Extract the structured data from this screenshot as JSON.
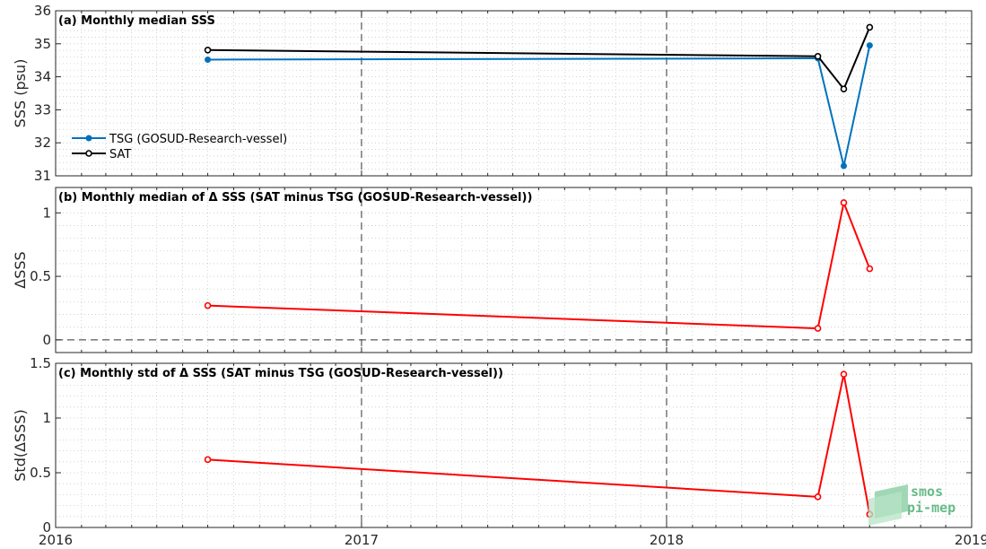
{
  "chart_data": [
    {
      "type": "line",
      "title": "(a) Monthly median SSS",
      "ylabel": "SSS (psu)",
      "ylim": [
        31,
        36
      ],
      "yticks": [
        31,
        32,
        33,
        34,
        35,
        36
      ],
      "xlim": [
        "2016-01-01",
        "2019-01-01"
      ],
      "grid": true,
      "legend": "bottom-left",
      "series": [
        {
          "name": "TSG (GOSUD-Research-vessel)",
          "color": "#0072BD",
          "marker": "filled-circle",
          "x": [
            "2016-07",
            "2018-07",
            "2018-08",
            "2018-09"
          ],
          "values": [
            34.52,
            34.56,
            31.3,
            34.95
          ]
        },
        {
          "name": "SAT",
          "color": "#000000",
          "marker": "open-circle",
          "x": [
            "2016-07",
            "2018-07",
            "2018-08",
            "2018-09"
          ],
          "values": [
            34.81,
            34.62,
            33.63,
            35.5
          ]
        }
      ]
    },
    {
      "type": "line",
      "title": "(b) Monthly median of Δ SSS (SAT minus TSG (GOSUD-Research-vessel))",
      "ylabel": "ΔSSS",
      "ylim": [
        -0.1,
        1.2
      ],
      "yticks": [
        0,
        0.5,
        1
      ],
      "xlim": [
        "2016-01-01",
        "2019-01-01"
      ],
      "grid": true,
      "zero_line": true,
      "series": [
        {
          "color": "#FF0000",
          "marker": "open-circle",
          "x": [
            "2016-07",
            "2018-07",
            "2018-08",
            "2018-09"
          ],
          "values": [
            0.27,
            0.09,
            1.08,
            0.56
          ]
        }
      ]
    },
    {
      "type": "line",
      "title": "(c) Monthly std of Δ SSS (SAT minus TSG (GOSUD-Research-vessel))",
      "ylabel": "Std(ΔSSS)",
      "ylim": [
        0,
        1.5
      ],
      "yticks": [
        0,
        0.5,
        1,
        1.5
      ],
      "xlim": [
        "2016-01-01",
        "2019-01-01"
      ],
      "xticks": [
        "2016",
        "2017",
        "2018",
        "2019"
      ],
      "grid": true,
      "series": [
        {
          "color": "#FF0000",
          "marker": "open-circle",
          "x": [
            "2016-07",
            "2018-07",
            "2018-08",
            "2018-09"
          ],
          "values": [
            0.62,
            0.28,
            1.4,
            0.12
          ]
        }
      ]
    }
  ],
  "logo": {
    "line1": "smos",
    "line2": "pi-mep"
  }
}
